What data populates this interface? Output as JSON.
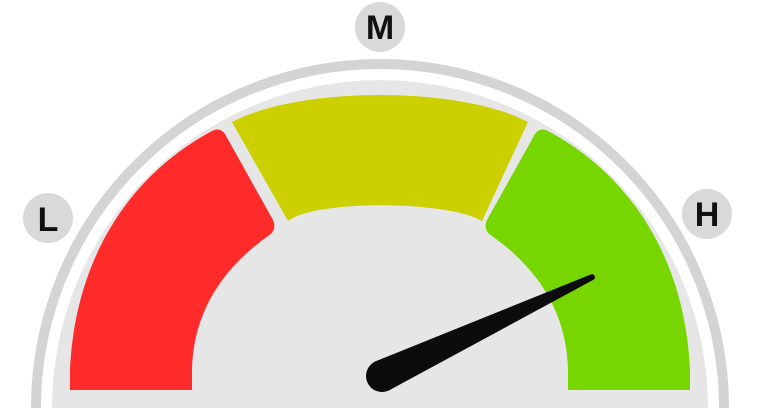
{
  "gauge": {
    "labels": {
      "low": "L",
      "medium": "M",
      "high": "H"
    },
    "value_fraction": 0.86,
    "zones": [
      {
        "name": "low",
        "color": "#ff2a2a"
      },
      {
        "name": "medium",
        "color": "#cccf00"
      },
      {
        "name": "high",
        "color": "#77d600"
      }
    ],
    "colors": {
      "outer_ring": "#d4d4d4",
      "face": "#e6e6e6",
      "label_badge": "#d9d9d9",
      "needle": "#0c0c0c"
    }
  }
}
